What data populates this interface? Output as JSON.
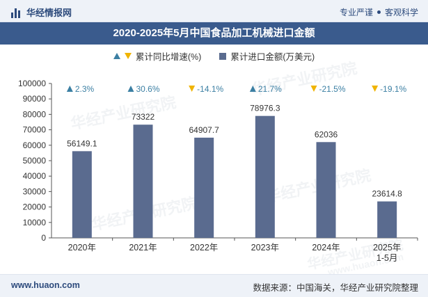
{
  "header": {
    "brand": "华经情报网",
    "tag1": "专业严谨",
    "tag2": "客观科学"
  },
  "title": "2020-2025年5月中国食品加工机械进口金额",
  "legend": {
    "growth_label": "累计同比增速(%)",
    "amount_label": "累计进口金额(万美元)"
  },
  "chart_data": {
    "type": "bar",
    "title": "2020-2025年5月中国食品加工机械进口金额",
    "categories": [
      "2020年",
      "2021年",
      "2022年",
      "2023年",
      "2024年",
      "2025年\n1-5月"
    ],
    "series": [
      {
        "name": "累计进口金额(万美元)",
        "values": [
          56149.1,
          73322,
          64907.7,
          78976.3,
          62036,
          23614.8
        ],
        "color": "#5a6b8f"
      },
      {
        "name": "累计同比增速(%)",
        "values": [
          2.3,
          30.6,
          -14.1,
          21.7,
          -21.5,
          -19.1
        ]
      }
    ],
    "value_labels": [
      "56149.1",
      "73322",
      "64907.7",
      "78976.3",
      "62036",
      "23614.8"
    ],
    "growth_labels": [
      "2.3%",
      "30.6%",
      "-14.1%",
      "21.7%",
      "-21.5%",
      "-19.1%"
    ],
    "yticks": [
      "0",
      "10000",
      "20000",
      "30000",
      "40000",
      "50000",
      "60000",
      "70000",
      "80000",
      "90000",
      "100000"
    ],
    "ylim": [
      0,
      100000
    ],
    "up_color": "#3b7fa3",
    "down_color": "#f0b400"
  },
  "watermark": "华经产业研究院",
  "watermark_url": "www.huaon.com",
  "footer": {
    "website": "www.huaon.com",
    "source": "数据来源：中国海关，华经产业研究院整理"
  }
}
